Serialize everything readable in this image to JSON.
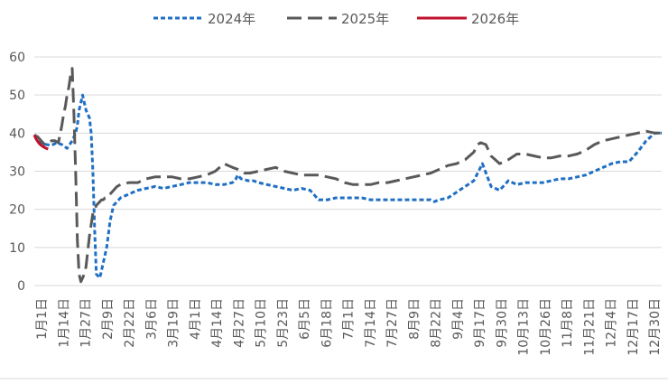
{
  "chart_data": {
    "type": "line",
    "title": "",
    "xlabel": "",
    "ylabel": "",
    "ylim": [
      0,
      60
    ],
    "yticks": [
      0,
      10,
      20,
      30,
      40,
      50,
      60
    ],
    "grid": "horizontal",
    "legend_position": "top-center",
    "categories": [
      "1月1日",
      "1月14日",
      "1月27日",
      "2月9日",
      "2月22日",
      "3月6日",
      "3月19日",
      "4月1日",
      "4月14日",
      "4月27日",
      "5月10日",
      "5月23日",
      "6月5日",
      "6月18日",
      "7月1日",
      "7月14日",
      "7月27日",
      "8月9日",
      "8月22日",
      "9月4日",
      "9月17日",
      "9月30日",
      "10月13日",
      "10月26日",
      "11月8日",
      "11月21日",
      "12月4日",
      "12月17日",
      "12月30日"
    ],
    "series": [
      {
        "name": "2024年",
        "color": "#1f6fc4",
        "style": "dotted",
        "x": [
          0,
          2,
          4,
          7,
          10,
          13,
          16,
          19,
          22,
          24,
          25,
          26,
          27,
          28,
          30,
          32,
          33,
          34,
          35,
          36,
          38,
          40,
          42,
          44,
          46,
          48,
          50,
          55,
          60,
          65,
          70,
          75,
          80,
          85,
          90,
          95,
          100,
          105,
          110,
          115,
          117,
          118,
          120,
          124,
          127,
          130,
          135,
          140,
          145,
          150,
          155,
          160,
          165,
          170,
          175,
          180,
          185,
          190,
          195,
          200,
          205,
          210,
          215,
          220,
          225,
          228,
          230,
          232,
          235,
          240,
          245,
          250,
          255,
          260,
          265,
          270,
          275,
          280,
          285,
          290,
          295,
          300,
          305,
          310,
          315,
          320,
          325,
          330,
          335,
          340,
          345,
          350,
          355,
          360,
          364
        ],
        "y": [
          39.5,
          38.5,
          37.5,
          37,
          36.8,
          37.5,
          37,
          36,
          38,
          40,
          42,
          46,
          48,
          50,
          46,
          44,
          40,
          30,
          15,
          3,
          2,
          6,
          10,
          17,
          21,
          22,
          23,
          24,
          25,
          25.5,
          26,
          25.5,
          26,
          26.5,
          27,
          27,
          27,
          26.5,
          26.5,
          27,
          28,
          29,
          28,
          27.5,
          27.5,
          27,
          26.5,
          26,
          25.5,
          25,
          25.5,
          25,
          22.5,
          22.5,
          23,
          23,
          23,
          23,
          22.5,
          22.5,
          22.5,
          22.5,
          22.5,
          22.5,
          22.5,
          22.5,
          22.5,
          22,
          22.5,
          23,
          24.5,
          26,
          27.5,
          32,
          26,
          25,
          27.5,
          26.5,
          27,
          27,
          27,
          27.5,
          28,
          28,
          28.5,
          29,
          30,
          31,
          32,
          32.5,
          32.5,
          35,
          38,
          40,
          40
        ]
      },
      {
        "name": "2025年",
        "color": "#595959",
        "style": "dashed",
        "x": [
          0,
          2,
          4,
          6,
          8,
          10,
          12,
          14,
          16,
          17,
          18,
          19,
          20,
          21,
          22,
          23,
          24,
          25,
          26,
          27,
          28,
          29,
          30,
          31,
          32,
          33,
          34,
          35,
          36,
          37,
          38,
          39,
          40,
          41,
          42,
          43,
          44,
          45,
          46,
          47,
          48,
          50,
          55,
          60,
          65,
          70,
          75,
          80,
          85,
          90,
          95,
          100,
          105,
          110,
          115,
          118,
          120,
          122,
          125,
          130,
          135,
          140,
          145,
          150,
          155,
          160,
          165,
          170,
          175,
          180,
          185,
          190,
          195,
          200,
          205,
          210,
          215,
          220,
          225,
          230,
          235,
          240,
          245,
          250,
          255,
          257,
          259,
          262,
          265,
          270,
          275,
          280,
          285,
          290,
          295,
          300,
          305,
          310,
          315,
          320,
          325,
          330,
          335,
          340,
          345,
          350,
          355,
          360,
          364
        ],
        "y": [
          39.5,
          39,
          38,
          37,
          37.5,
          38,
          38,
          37.5,
          42,
          45,
          47,
          50,
          52,
          55,
          57,
          45,
          30,
          12,
          3,
          1,
          2,
          3,
          5,
          9,
          13,
          16,
          19,
          20,
          21,
          21.5,
          22,
          22.5,
          22.5,
          23,
          23,
          23.5,
          24,
          24.5,
          25,
          25.5,
          26,
          26.5,
          27,
          27,
          28,
          28.5,
          28.5,
          28.5,
          28,
          28,
          28.5,
          29,
          30,
          32,
          31,
          30.5,
          30,
          29.5,
          29.5,
          30,
          30.5,
          31,
          30,
          29.5,
          29,
          29,
          29,
          28.5,
          28,
          27,
          26.5,
          26.5,
          26.5,
          27,
          27,
          27.5,
          28,
          28.5,
          29,
          29.5,
          30.5,
          31.5,
          32,
          33,
          35,
          37,
          37.5,
          37,
          34,
          32,
          33,
          34.5,
          34.5,
          34,
          33.5,
          33.5,
          34,
          34,
          34.5,
          35.5,
          37,
          38,
          38.5,
          39,
          39.5,
          40,
          40.5,
          40,
          40
        ]
      },
      {
        "name": "2026年",
        "color": "#c0122c",
        "style": "solid",
        "x": [
          0,
          1,
          2,
          3,
          4,
          5,
          6,
          7,
          8
        ],
        "y": [
          39.5,
          38.5,
          37.8,
          37.2,
          36.8,
          36.5,
          36.2,
          36,
          35.8
        ]
      }
    ]
  }
}
